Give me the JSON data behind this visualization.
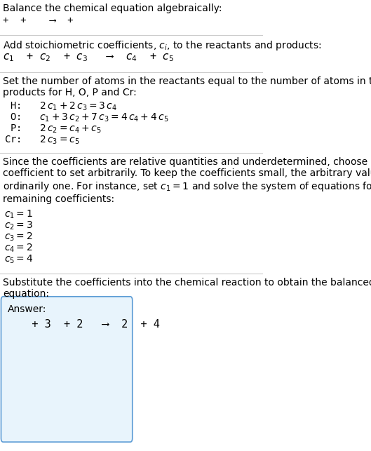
{
  "title": "Balance the chemical equation algebraically:",
  "line1": "+  +    ⟶  +",
  "section2_header": "Add stoichiometric coefficients, $c_i$, to the reactants and products:",
  "section2_eq": "$c_1$  + $c_2$  + $c_3$   ⟶  $c_4$  + $c_5$",
  "section3_header": "Set the number of atoms in the reactants equal to the number of atoms in the\nproducts for H, O, P and Cr:",
  "section3_lines": [
    " H:   $2\\,c_1 + 2\\,c_3 = 3\\,c_4$",
    " O:   $c_1 + 3\\,c_2 + 7\\,c_3 = 4\\,c_4 + 4\\,c_5$",
    " P:   $2\\,c_2 = c_4 + c_5$",
    "Cr:   $2\\,c_3 = c_5$"
  ],
  "section4_header": "Since the coefficients are relative quantities and underdetermined, choose a\ncoefficient to set arbitrarily. To keep the coefficients small, the arbitrary value is\nordinarily one. For instance, set $c_1 = 1$ and solve the system of equations for the\nremaining coefficients:",
  "section4_lines": [
    "$c_1 = 1$",
    "$c_2 = 3$",
    "$c_3 = 2$",
    "$c_4 = 2$",
    "$c_5 = 4$"
  ],
  "section5_header": "Substitute the coefficients into the chemical reaction to obtain the balanced\nequation:",
  "answer_label": "Answer:",
  "answer_eq": "   + 3  + 2   ⟶  2  + 4",
  "bg_color": "#ffffff",
  "answer_box_color": "#e8f4fc",
  "answer_box_border": "#5b9bd5",
  "text_color": "#000000",
  "line_color": "#cccccc",
  "font_size": 10,
  "mono_font": "DejaVu Sans Mono"
}
